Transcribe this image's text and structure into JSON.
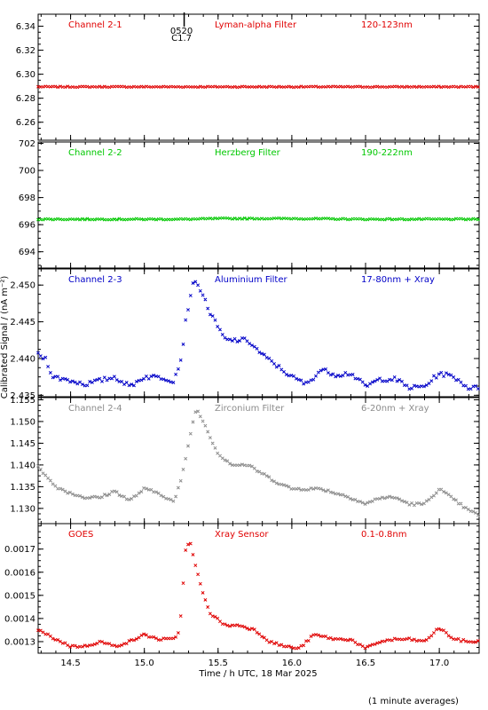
{
  "chart_data": {
    "type": "scatter",
    "x_axis": {
      "label": "Time / h UTC, 18 Mar 2025",
      "range": [
        14.28,
        17.27
      ],
      "ticks": [
        "14.5",
        "15.0",
        "15.5",
        "16.0",
        "16.5",
        "17.0"
      ]
    },
    "y_axis_label": "Calibrated Signal / (nA m⁻²)",
    "footnote": "(1 minute averages)",
    "event_marker": {
      "time": "0520",
      "class": "C1.7",
      "x": 15.27
    },
    "panels": [
      {
        "channel": "Channel 2-1",
        "filter": "Lyman-alpha Filter",
        "band": "120-123nm",
        "color": "#e00000",
        "ylim": [
          6.245,
          6.35
        ],
        "ticks": [
          "6.26",
          "6.28",
          "6.30",
          "6.32",
          "6.34"
        ],
        "keypoints": [
          [
            14.28,
            6.2895
          ],
          [
            15.0,
            6.2895
          ],
          [
            15.5,
            6.2895
          ],
          [
            16.0,
            6.2895
          ],
          [
            16.5,
            6.2895
          ],
          [
            17.27,
            6.2895
          ]
        ],
        "noise": 0.0004
      },
      {
        "channel": "Channel 2-2",
        "filter": "Herzberg Filter",
        "band": "190-222nm",
        "color": "#00c800",
        "ylim": [
          692.8,
          702.1
        ],
        "ticks": [
          "694",
          "696",
          "698",
          "700",
          "702"
        ],
        "keypoints": [
          [
            14.28,
            696.4
          ],
          [
            15.3,
            696.4
          ],
          [
            15.5,
            696.45
          ],
          [
            16.0,
            696.45
          ],
          [
            16.5,
            696.4
          ],
          [
            17.27,
            696.4
          ]
        ],
        "noise": 0.04
      },
      {
        "channel": "Channel 2-3",
        "filter": "Aluminium Filter",
        "band": "17-80nm + Xray",
        "color": "#0000c8",
        "ylim": [
          2.4348,
          2.4522
        ],
        "ticks": [
          "2.435",
          "2.440",
          "2.445",
          "2.450"
        ],
        "keypoints": [
          [
            14.28,
            2.4405
          ],
          [
            14.33,
            2.44
          ],
          [
            14.38,
            2.4375
          ],
          [
            14.5,
            2.437
          ],
          [
            14.6,
            2.4365
          ],
          [
            14.7,
            2.437
          ],
          [
            14.8,
            2.4375
          ],
          [
            14.9,
            2.4362
          ],
          [
            15.0,
            2.4375
          ],
          [
            15.1,
            2.4375
          ],
          [
            15.2,
            2.437
          ],
          [
            15.25,
            2.44
          ],
          [
            15.28,
            2.445
          ],
          [
            15.33,
            2.4505
          ],
          [
            15.38,
            2.4495
          ],
          [
            15.45,
            2.446
          ],
          [
            15.55,
            2.4425
          ],
          [
            15.7,
            2.4425
          ],
          [
            15.8,
            2.4405
          ],
          [
            15.9,
            2.439
          ],
          [
            16.0,
            2.4375
          ],
          [
            16.1,
            2.4365
          ],
          [
            16.2,
            2.4385
          ],
          [
            16.3,
            2.4378
          ],
          [
            16.4,
            2.438
          ],
          [
            16.5,
            2.4362
          ],
          [
            16.6,
            2.4372
          ],
          [
            16.7,
            2.4372
          ],
          [
            16.8,
            2.436
          ],
          [
            16.9,
            2.4362
          ],
          [
            17.0,
            2.438
          ],
          [
            17.1,
            2.4375
          ],
          [
            17.2,
            2.436
          ],
          [
            17.27,
            2.436
          ]
        ],
        "noise": 0.0003
      },
      {
        "channel": "Channel 2-4",
        "filter": "Zirconium Filter",
        "band": "6-20nm + Xray",
        "color": "#8c8c8c",
        "ylim": [
          1.1265,
          1.1555
        ],
        "ticks": [
          "1.130",
          "1.135",
          "1.140",
          "1.145",
          "1.150",
          "1.155"
        ],
        "keypoints": [
          [
            14.28,
            1.14
          ],
          [
            14.33,
            1.1375
          ],
          [
            14.4,
            1.135
          ],
          [
            14.5,
            1.1335
          ],
          [
            14.6,
            1.1325
          ],
          [
            14.7,
            1.1325
          ],
          [
            14.8,
            1.134
          ],
          [
            14.9,
            1.1318
          ],
          [
            15.0,
            1.1345
          ],
          [
            15.1,
            1.1335
          ],
          [
            15.2,
            1.1315
          ],
          [
            15.25,
            1.1365
          ],
          [
            15.3,
            1.145
          ],
          [
            15.35,
            1.153
          ],
          [
            15.4,
            1.15
          ],
          [
            15.5,
            1.1425
          ],
          [
            15.6,
            1.14
          ],
          [
            15.7,
            1.14
          ],
          [
            15.8,
            1.138
          ],
          [
            15.9,
            1.136
          ],
          [
            16.0,
            1.1345
          ],
          [
            16.1,
            1.1345
          ],
          [
            16.2,
            1.1345
          ],
          [
            16.3,
            1.1335
          ],
          [
            16.4,
            1.1325
          ],
          [
            16.5,
            1.131
          ],
          [
            16.6,
            1.1325
          ],
          [
            16.7,
            1.1325
          ],
          [
            16.8,
            1.131
          ],
          [
            16.9,
            1.131
          ],
          [
            17.0,
            1.1345
          ],
          [
            17.1,
            1.132
          ],
          [
            17.2,
            1.1295
          ],
          [
            17.27,
            1.1285
          ]
        ],
        "noise": 0.0003
      },
      {
        "channel": "GOES",
        "filter": "Xray Sensor",
        "band": "0.1-0.8nm",
        "color": "#e00000",
        "ylim": [
          0.00125,
          0.00181
        ],
        "ticks": [
          "0.0013",
          "0.0014",
          "0.0015",
          "0.0016",
          "0.0017"
        ],
        "keypoints": [
          [
            14.28,
            0.00135
          ],
          [
            14.4,
            0.00131
          ],
          [
            14.5,
            0.00128
          ],
          [
            14.6,
            0.00128
          ],
          [
            14.7,
            0.0013
          ],
          [
            14.8,
            0.00128
          ],
          [
            14.9,
            0.0013
          ],
          [
            15.0,
            0.00133
          ],
          [
            15.1,
            0.00131
          ],
          [
            15.2,
            0.00131
          ],
          [
            15.24,
            0.00135
          ],
          [
            15.28,
            0.0017
          ],
          [
            15.31,
            0.00173
          ],
          [
            15.35,
            0.00162
          ],
          [
            15.4,
            0.0015
          ],
          [
            15.45,
            0.00142
          ],
          [
            15.55,
            0.00137
          ],
          [
            15.65,
            0.00137
          ],
          [
            15.75,
            0.00135
          ],
          [
            15.85,
            0.0013
          ],
          [
            15.95,
            0.00128
          ],
          [
            16.05,
            0.00127
          ],
          [
            16.15,
            0.00133
          ],
          [
            16.3,
            0.00131
          ],
          [
            16.4,
            0.00131
          ],
          [
            16.5,
            0.00127
          ],
          [
            16.6,
            0.0013
          ],
          [
            16.7,
            0.00131
          ],
          [
            16.8,
            0.00131
          ],
          [
            16.9,
            0.0013
          ],
          [
            17.0,
            0.00136
          ],
          [
            17.1,
            0.00131
          ],
          [
            17.2,
            0.0013
          ],
          [
            17.27,
            0.0013
          ]
        ],
        "noise": 5e-06
      }
    ]
  }
}
